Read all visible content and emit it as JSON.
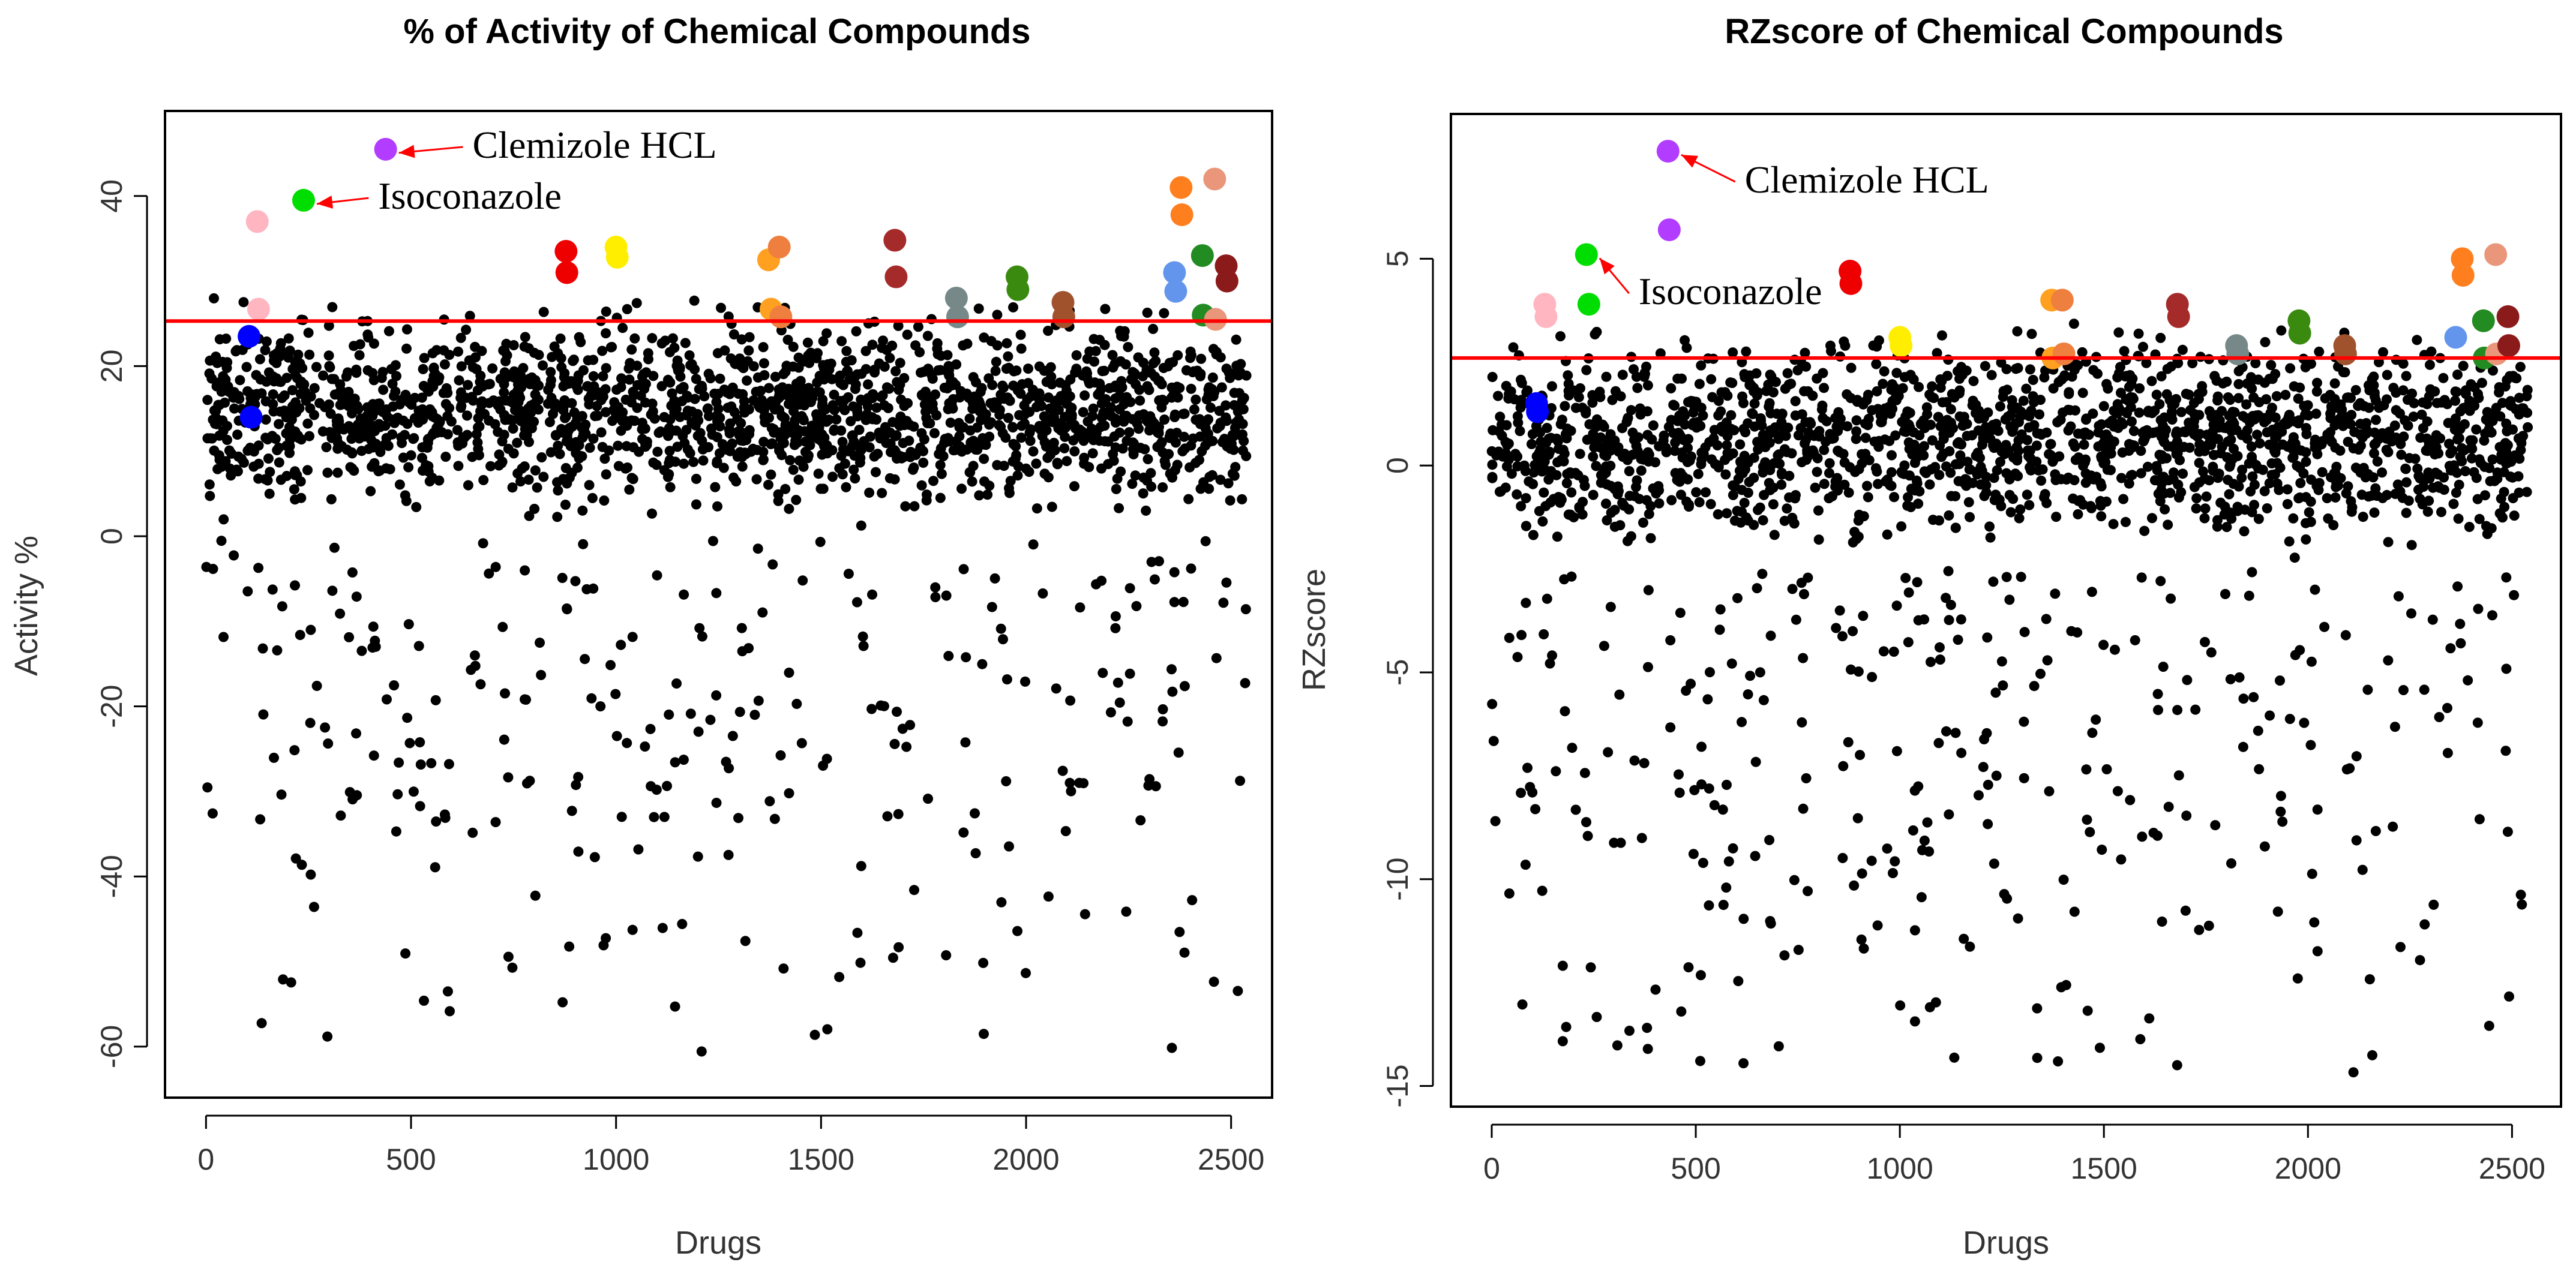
{
  "chart_data": [
    {
      "type": "scatter",
      "title": "% of Activity of Chemical Compounds",
      "xlabel": "Drugs",
      "ylabel": "Activity %",
      "xlim": [
        -100,
        2600
      ],
      "ylim": [
        -66,
        50
      ],
      "xticks": [
        0,
        500,
        1000,
        1500,
        2000,
        2500
      ],
      "yticks": [
        -60,
        -40,
        -20,
        0,
        20,
        40
      ],
      "threshold": {
        "value": 25.3,
        "color": "#ff0000"
      },
      "background": {
        "count": 2100,
        "core_range": [
          0,
          28
        ],
        "outlier_min": -61,
        "color": "#000000"
      },
      "highlighted": [
        {
          "x": 105,
          "y": 23.5,
          "color": "#0000ff"
        },
        {
          "x": 110,
          "y": 14.0,
          "color": "#0000ff"
        },
        {
          "x": 125,
          "y": 37.0,
          "color": "#ffb6c1"
        },
        {
          "x": 128,
          "y": 26.7,
          "color": "#ffb6c1"
        },
        {
          "x": 238,
          "y": 39.5,
          "color": "#00dd00"
        },
        {
          "x": 438,
          "y": 45.5,
          "color": "#b23cff"
        },
        {
          "x": 878,
          "y": 33.5,
          "color": "#ee0000"
        },
        {
          "x": 880,
          "y": 31.0,
          "color": "#ee0000"
        },
        {
          "x": 1000,
          "y": 34.0,
          "color": "#ffee00"
        },
        {
          "x": 1003,
          "y": 32.8,
          "color": "#ffee00"
        },
        {
          "x": 1372,
          "y": 32.5,
          "color": "#ffa020"
        },
        {
          "x": 1378,
          "y": 26.7,
          "color": "#ffa020"
        },
        {
          "x": 1398,
          "y": 34.0,
          "color": "#ee7f3f"
        },
        {
          "x": 1402,
          "y": 25.8,
          "color": "#ee7f3f"
        },
        {
          "x": 1680,
          "y": 34.8,
          "color": "#a52a2a"
        },
        {
          "x": 1683,
          "y": 30.5,
          "color": "#a52a2a"
        },
        {
          "x": 1830,
          "y": 28.0,
          "color": "#778888"
        },
        {
          "x": 1833,
          "y": 25.8,
          "color": "#778888"
        },
        {
          "x": 1978,
          "y": 30.5,
          "color": "#3a8a10"
        },
        {
          "x": 1980,
          "y": 29.0,
          "color": "#3a8a10"
        },
        {
          "x": 2090,
          "y": 27.5,
          "color": "#a0522d"
        },
        {
          "x": 2092,
          "y": 25.8,
          "color": "#a0522d"
        },
        {
          "x": 2362,
          "y": 31.0,
          "color": "#6495ed"
        },
        {
          "x": 2365,
          "y": 28.8,
          "color": "#6495ed"
        },
        {
          "x": 2378,
          "y": 41.0,
          "color": "#ff7f1f"
        },
        {
          "x": 2380,
          "y": 37.8,
          "color": "#ff7f1f"
        },
        {
          "x": 2430,
          "y": 33.0,
          "color": "#228b22"
        },
        {
          "x": 2432,
          "y": 26.0,
          "color": "#228b22"
        },
        {
          "x": 2460,
          "y": 42.0,
          "color": "#e9967a"
        },
        {
          "x": 2462,
          "y": 25.5,
          "color": "#e9967a"
        },
        {
          "x": 2488,
          "y": 31.8,
          "color": "#8b1a1a"
        },
        {
          "x": 2490,
          "y": 30.0,
          "color": "#8b1a1a"
        }
      ],
      "annotations": [
        {
          "text": "Clemizole HCL",
          "point": [
            438,
            45.5
          ],
          "text_pos": [
            650,
            44.5
          ]
        },
        {
          "text": "Isoconazole",
          "point": [
            238,
            39.5
          ],
          "text_pos": [
            420,
            38.5
          ]
        }
      ]
    },
    {
      "type": "scatter",
      "title": "RZscore of Chemical Compounds",
      "xlabel": "Drugs",
      "ylabel": "RZscore",
      "xlim": [
        -100,
        2620
      ],
      "ylim": [
        -15.5,
        8.5
      ],
      "xticks": [
        0,
        500,
        1000,
        1500,
        2000,
        2500
      ],
      "yticks": [
        -15,
        -10,
        -5,
        0,
        5
      ],
      "threshold": {
        "value": 2.6,
        "color": "#ff0000"
      },
      "background": {
        "count": 2100,
        "core_range": [
          -2.5,
          3.5
        ],
        "outlier_min": -14.7,
        "color": "#000000"
      },
      "highlighted": [
        {
          "x": 110,
          "y": 1.5,
          "color": "#0000ff"
        },
        {
          "x": 112,
          "y": 1.3,
          "color": "#0000ff"
        },
        {
          "x": 130,
          "y": 3.9,
          "color": "#ffb6c1"
        },
        {
          "x": 133,
          "y": 3.6,
          "color": "#ffb6c1"
        },
        {
          "x": 232,
          "y": 5.1,
          "color": "#00dd00"
        },
        {
          "x": 238,
          "y": 3.9,
          "color": "#00dd00"
        },
        {
          "x": 432,
          "y": 7.6,
          "color": "#b23cff"
        },
        {
          "x": 435,
          "y": 5.7,
          "color": "#b23cff"
        },
        {
          "x": 878,
          "y": 4.7,
          "color": "#ee0000"
        },
        {
          "x": 880,
          "y": 4.4,
          "color": "#ee0000"
        },
        {
          "x": 1000,
          "y": 3.1,
          "color": "#ffee00"
        },
        {
          "x": 1003,
          "y": 2.9,
          "color": "#ffee00"
        },
        {
          "x": 1372,
          "y": 4.0,
          "color": "#ffa020"
        },
        {
          "x": 1375,
          "y": 2.6,
          "color": "#ffa020"
        },
        {
          "x": 1398,
          "y": 4.0,
          "color": "#ee7f3f"
        },
        {
          "x": 1402,
          "y": 2.7,
          "color": "#ee7f3f"
        },
        {
          "x": 1680,
          "y": 3.9,
          "color": "#a52a2a"
        },
        {
          "x": 1683,
          "y": 3.6,
          "color": "#a52a2a"
        },
        {
          "x": 1825,
          "y": 2.9,
          "color": "#778888"
        },
        {
          "x": 1828,
          "y": 2.7,
          "color": "#778888"
        },
        {
          "x": 1978,
          "y": 3.5,
          "color": "#3a8a10"
        },
        {
          "x": 1980,
          "y": 3.2,
          "color": "#3a8a10"
        },
        {
          "x": 2090,
          "y": 2.9,
          "color": "#a0522d"
        },
        {
          "x": 2092,
          "y": 2.7,
          "color": "#a0522d"
        },
        {
          "x": 2362,
          "y": 3.1,
          "color": "#6495ed"
        },
        {
          "x": 2378,
          "y": 5.0,
          "color": "#ff7f1f"
        },
        {
          "x": 2380,
          "y": 4.6,
          "color": "#ff7f1f"
        },
        {
          "x": 2430,
          "y": 3.5,
          "color": "#228b22"
        },
        {
          "x": 2432,
          "y": 2.6,
          "color": "#228b22"
        },
        {
          "x": 2460,
          "y": 5.1,
          "color": "#e9967a"
        },
        {
          "x": 2462,
          "y": 2.7,
          "color": "#e9967a"
        },
        {
          "x": 2490,
          "y": 3.6,
          "color": "#8b1a1a"
        },
        {
          "x": 2492,
          "y": 2.9,
          "color": "#8b1a1a"
        }
      ],
      "annotations": [
        {
          "text": "Clemizole HCL",
          "point": [
            432,
            7.6
          ],
          "text_pos": [
            620,
            6.6
          ]
        },
        {
          "text": "Isoconazole",
          "point": [
            232,
            5.1
          ],
          "text_pos": [
            360,
            3.9
          ]
        }
      ]
    }
  ]
}
